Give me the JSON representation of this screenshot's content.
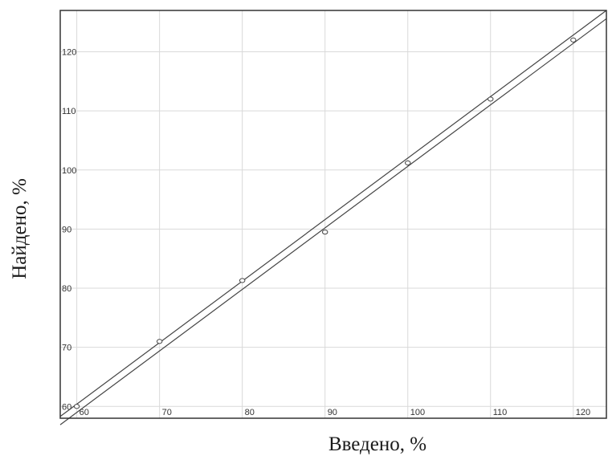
{
  "chart_data": {
    "type": "scatter",
    "title": "",
    "xlabel": "Введено, %",
    "ylabel": "Найдено, %",
    "xlim": [
      58,
      124
    ],
    "ylim": [
      58,
      127
    ],
    "x_ticks": [
      60,
      70,
      80,
      90,
      100,
      110,
      120
    ],
    "y_ticks": [
      60,
      70,
      80,
      90,
      100,
      110,
      120
    ],
    "grid": true,
    "points": [
      {
        "x": 60,
        "y": 60
      },
      {
        "x": 70,
        "y": 71
      },
      {
        "x": 80,
        "y": 81.3
      },
      {
        "x": 90,
        "y": 89.5
      },
      {
        "x": 100,
        "y": 101.2
      },
      {
        "x": 110,
        "y": 112
      },
      {
        "x": 120,
        "y": 122
      }
    ],
    "lines": [
      {
        "x": [
          58,
          124
        ],
        "y": [
          58.3,
          127
        ]
      },
      {
        "x": [
          58,
          124
        ],
        "y": [
          56.9,
          125.6
        ]
      }
    ],
    "colors": {
      "axis": "#333333",
      "grid": "#d9d9d9",
      "line": "#444444",
      "marker": "#444444"
    }
  }
}
